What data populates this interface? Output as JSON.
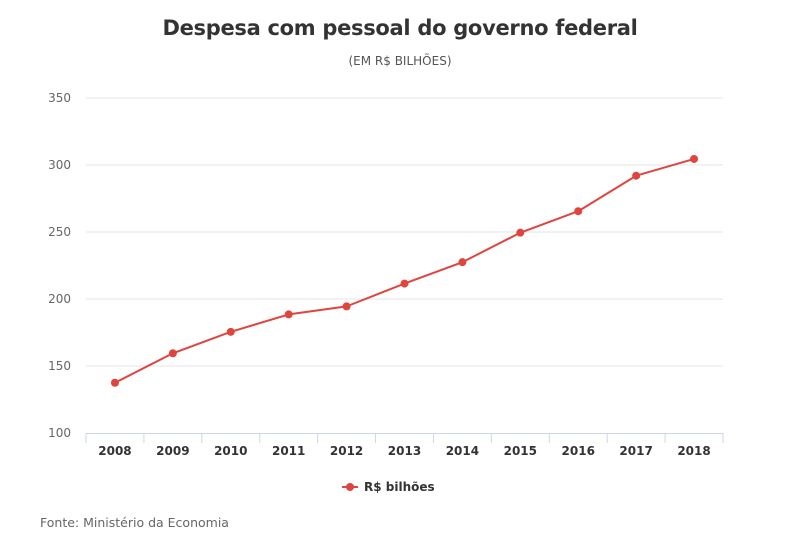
{
  "chart_data": {
    "type": "line",
    "title": "Despesa com pessoal do governo federal",
    "subtitle": "(EM R$ BILHÕES)",
    "xlabel": "",
    "ylabel": "",
    "categories": [
      "2008",
      "2009",
      "2010",
      "2011",
      "2012",
      "2013",
      "2014",
      "2015",
      "2016",
      "2017",
      "2018"
    ],
    "series": [
      {
        "name": "R$ bilhões",
        "color": "#e0443e",
        "values": [
          137.5,
          159.5,
          175.5,
          188.5,
          194.5,
          211.5,
          227.5,
          249.5,
          265.5,
          292,
          304.5
        ]
      }
    ],
    "ylim": [
      100,
      350
    ],
    "yticks": [
      100,
      150,
      200,
      250,
      300,
      350
    ],
    "grid": true,
    "legend_position": "bottom-center"
  },
  "source": "Fonte: Ministério da Economia",
  "colors": {
    "line": "#e0443e",
    "grid": "#e6e6e6",
    "axis": "#ccd6eb"
  }
}
